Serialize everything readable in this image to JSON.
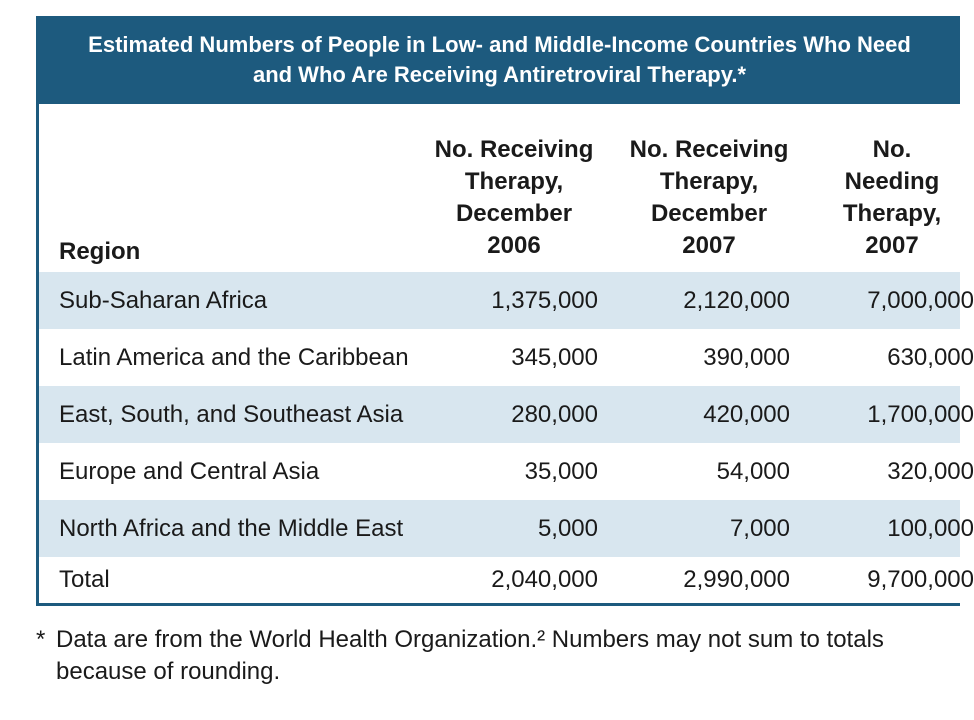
{
  "title": {
    "line1": "Estimated Numbers of People in Low- and Middle-Income Countries Who Need",
    "line2": "and Who Are Receiving Antiretroviral Therapy.*"
  },
  "headers": {
    "region": "Region",
    "col1": [
      "No. Receiving",
      "Therapy,",
      "December",
      "2006"
    ],
    "col2": [
      "No. Receiving",
      "Therapy,",
      "December",
      "2007"
    ],
    "col3": [
      "No.",
      "Needing",
      "Therapy,",
      "2007"
    ]
  },
  "rows": [
    {
      "region": "Sub-Saharan Africa",
      "dec2006": "1,375,000",
      "dec2007": "2,120,000",
      "need2007": "7,000,000"
    },
    {
      "region": "Latin America and the Caribbean",
      "dec2006": "345,000",
      "dec2007": "390,000",
      "need2007": "630,000"
    },
    {
      "region": "East, South, and Southeast Asia",
      "dec2006": "280,000",
      "dec2007": "420,000",
      "need2007": "1,700,000"
    },
    {
      "region": "Europe and Central Asia",
      "dec2006": "35,000",
      "dec2007": "54,000",
      "need2007": "320,000"
    },
    {
      "region": "North Africa and the Middle East",
      "dec2006": "5,000",
      "dec2007": "7,000",
      "need2007": "100,000"
    },
    {
      "region": "Total",
      "dec2006": "2,040,000",
      "dec2007": "2,990,000",
      "need2007": "9,700,000"
    }
  ],
  "footnote": {
    "marker": "*",
    "text": "Data are from the World Health Organization.² Numbers may not sum to totals because of rounding."
  },
  "colors": {
    "title_bg": "#1d5a7e",
    "row_shade": "#d8e6ef"
  }
}
